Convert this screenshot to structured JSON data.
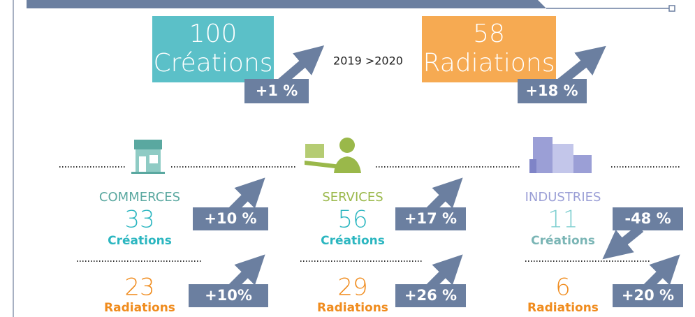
{
  "period": "2019 >2020",
  "summary": {
    "creations": {
      "value": 100,
      "label": "Créations",
      "change": "+1 %"
    },
    "radiations": {
      "value": 58,
      "label": "Radiations",
      "change": "+18 %"
    }
  },
  "sectors": [
    {
      "name": "COMMERCES",
      "creations": {
        "value": 33,
        "label": "Créations",
        "change": "+10 %"
      },
      "radiations": {
        "value": 23,
        "label": "Radiations",
        "change": "+10%"
      }
    },
    {
      "name": "SERVICES",
      "creations": {
        "value": 56,
        "label": "Créations",
        "change": "+17 %"
      },
      "radiations": {
        "value": 29,
        "label": "Radiations",
        "change": "+26 %"
      }
    },
    {
      "name": "INDUSTRIES",
      "creations": {
        "value": 11,
        "label": "Créations",
        "change": "-48 %"
      },
      "radiations": {
        "value": 6,
        "label": "Radiations",
        "change": "+20 %"
      }
    }
  ]
}
